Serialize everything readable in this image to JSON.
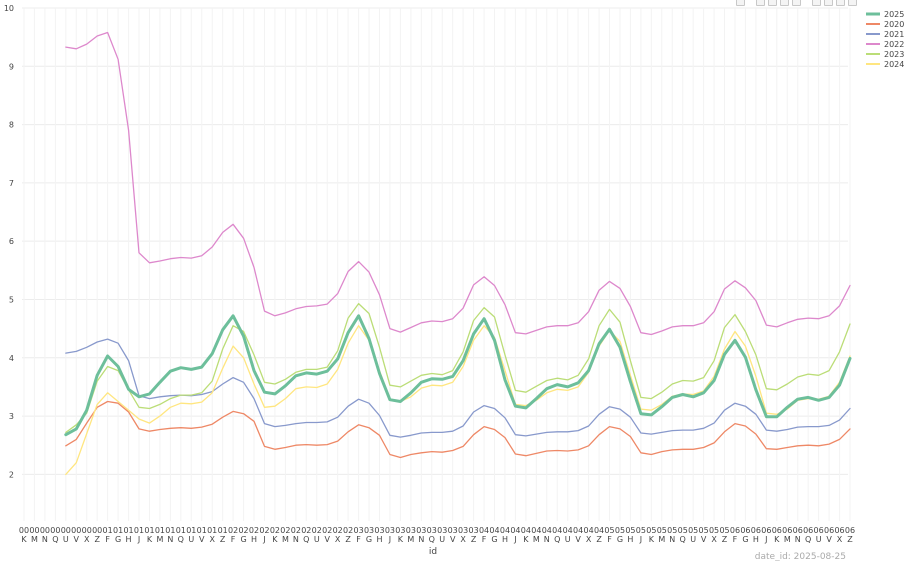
{
  "chart_data": {
    "type": "line",
    "xlabel": "id",
    "ylabel": "",
    "ylim": [
      1.2,
      10
    ],
    "yticks": [
      2,
      3,
      4,
      5,
      6,
      7,
      8,
      9,
      10
    ],
    "x_tick_labels": [
      [
        "00",
        "K"
      ],
      [
        "00",
        "M"
      ],
      [
        "00",
        "N"
      ],
      [
        "00",
        "Q"
      ],
      [
        "00",
        "U"
      ],
      [
        "00",
        "V"
      ],
      [
        "00",
        "X"
      ],
      [
        "00",
        "Z"
      ],
      [
        "01",
        "F"
      ],
      [
        "01",
        "G"
      ],
      [
        "01",
        "H"
      ],
      [
        "01",
        "J"
      ],
      [
        "01",
        "K"
      ],
      [
        "01",
        "M"
      ],
      [
        "01",
        "N"
      ],
      [
        "01",
        "Q"
      ],
      [
        "01",
        "U"
      ],
      [
        "01",
        "V"
      ],
      [
        "01",
        "X"
      ],
      [
        "01",
        "Z"
      ],
      [
        "02",
        "F"
      ],
      [
        "02",
        "G"
      ],
      [
        "02",
        "H"
      ],
      [
        "02",
        "J"
      ],
      [
        "02",
        "K"
      ],
      [
        "02",
        "M"
      ],
      [
        "02",
        "N"
      ],
      [
        "02",
        "Q"
      ],
      [
        "02",
        "U"
      ],
      [
        "02",
        "V"
      ],
      [
        "02",
        "X"
      ],
      [
        "02",
        "Z"
      ],
      [
        "03",
        "F"
      ],
      [
        "03",
        "G"
      ],
      [
        "03",
        "H"
      ],
      [
        "03",
        "J"
      ],
      [
        "03",
        "K"
      ],
      [
        "03",
        "M"
      ],
      [
        "03",
        "N"
      ],
      [
        "03",
        "Q"
      ],
      [
        "03",
        "U"
      ],
      [
        "03",
        "V"
      ],
      [
        "03",
        "X"
      ],
      [
        "03",
        "Z"
      ],
      [
        "04",
        "F"
      ],
      [
        "04",
        "G"
      ],
      [
        "04",
        "H"
      ],
      [
        "04",
        "J"
      ],
      [
        "04",
        "K"
      ],
      [
        "04",
        "M"
      ],
      [
        "04",
        "N"
      ],
      [
        "04",
        "Q"
      ],
      [
        "04",
        "U"
      ],
      [
        "04",
        "V"
      ],
      [
        "04",
        "X"
      ],
      [
        "04",
        "Z"
      ],
      [
        "05",
        "F"
      ],
      [
        "05",
        "G"
      ],
      [
        "05",
        "H"
      ],
      [
        "05",
        "J"
      ],
      [
        "05",
        "K"
      ],
      [
        "05",
        "M"
      ],
      [
        "05",
        "N"
      ],
      [
        "05",
        "Q"
      ],
      [
        "05",
        "U"
      ],
      [
        "05",
        "V"
      ],
      [
        "05",
        "X"
      ],
      [
        "05",
        "Z"
      ],
      [
        "06",
        "F"
      ],
      [
        "06",
        "G"
      ],
      [
        "06",
        "H"
      ],
      [
        "06",
        "J"
      ],
      [
        "06",
        "K"
      ],
      [
        "06",
        "M"
      ],
      [
        "06",
        "N"
      ],
      [
        "06",
        "Q"
      ],
      [
        "06",
        "U"
      ],
      [
        "06",
        "V"
      ],
      [
        "06",
        "X"
      ],
      [
        "06",
        "Z"
      ]
    ],
    "x_start_index": 4,
    "grid": true,
    "legend_position": "top-right",
    "series": [
      {
        "name": "2025",
        "color": "#6dbf9b",
        "width": 3,
        "values": [
          2.68,
          2.78,
          3.1,
          3.7,
          4.03,
          3.85,
          3.46,
          3.33,
          3.38,
          3.58,
          3.77,
          3.83,
          3.8,
          3.84,
          4.07,
          4.48,
          4.72,
          4.37,
          3.78,
          3.41,
          3.38,
          3.52,
          3.69,
          3.74,
          3.72,
          3.77,
          3.98,
          4.43,
          4.72,
          4.33,
          3.73,
          3.28,
          3.25,
          3.4,
          3.58,
          3.64,
          3.63,
          3.68,
          3.95,
          4.41,
          4.67,
          4.3,
          3.62,
          3.17,
          3.14,
          3.3,
          3.47,
          3.54,
          3.5,
          3.57,
          3.78,
          4.24,
          4.49,
          4.18,
          3.59,
          3.04,
          3.02,
          3.16,
          3.32,
          3.37,
          3.33,
          3.4,
          3.61,
          4.06,
          4.3,
          4.01,
          3.45,
          2.99,
          2.99,
          3.15,
          3.29,
          3.32,
          3.27,
          3.32,
          3.53,
          3.99
        ]
      },
      {
        "name": "2020",
        "color": "#ee8866",
        "width": 1.3,
        "values": [
          2.49,
          2.6,
          2.88,
          3.15,
          3.25,
          3.22,
          3.07,
          2.78,
          2.74,
          2.77,
          2.79,
          2.8,
          2.79,
          2.81,
          2.86,
          2.98,
          3.08,
          3.04,
          2.91,
          2.48,
          2.43,
          2.46,
          2.5,
          2.51,
          2.5,
          2.51,
          2.57,
          2.73,
          2.85,
          2.8,
          2.67,
          2.34,
          2.29,
          2.34,
          2.37,
          2.39,
          2.38,
          2.41,
          2.48,
          2.68,
          2.82,
          2.77,
          2.63,
          2.35,
          2.32,
          2.36,
          2.4,
          2.41,
          2.4,
          2.42,
          2.49,
          2.68,
          2.82,
          2.78,
          2.65,
          2.37,
          2.34,
          2.39,
          2.42,
          2.43,
          2.43,
          2.46,
          2.54,
          2.73,
          2.87,
          2.83,
          2.69,
          2.44,
          2.43,
          2.46,
          2.49,
          2.5,
          2.49,
          2.52,
          2.6,
          2.78
        ]
      },
      {
        "name": "2021",
        "color": "#8899cc",
        "width": 1.3,
        "values": [
          4.08,
          4.11,
          4.18,
          4.27,
          4.32,
          4.25,
          3.95,
          3.35,
          3.3,
          3.33,
          3.35,
          3.36,
          3.35,
          3.37,
          3.42,
          3.55,
          3.66,
          3.58,
          3.3,
          2.87,
          2.82,
          2.84,
          2.87,
          2.89,
          2.89,
          2.9,
          2.98,
          3.17,
          3.29,
          3.22,
          3.01,
          2.67,
          2.64,
          2.67,
          2.71,
          2.72,
          2.72,
          2.74,
          2.83,
          3.07,
          3.18,
          3.13,
          2.97,
          2.68,
          2.66,
          2.69,
          2.72,
          2.73,
          2.73,
          2.75,
          2.83,
          3.03,
          3.16,
          3.12,
          2.98,
          2.71,
          2.69,
          2.72,
          2.75,
          2.76,
          2.76,
          2.79,
          2.88,
          3.1,
          3.22,
          3.17,
          3.03,
          2.76,
          2.74,
          2.77,
          2.81,
          2.82,
          2.82,
          2.84,
          2.93,
          3.13
        ]
      },
      {
        "name": "2022",
        "color": "#dd88cc",
        "width": 1.3,
        "values": [
          9.33,
          9.3,
          9.38,
          9.52,
          9.58,
          9.12,
          7.9,
          5.8,
          5.63,
          5.66,
          5.7,
          5.72,
          5.71,
          5.75,
          5.9,
          6.15,
          6.29,
          6.05,
          5.55,
          4.8,
          4.72,
          4.77,
          4.84,
          4.88,
          4.89,
          4.92,
          5.1,
          5.48,
          5.65,
          5.47,
          5.08,
          4.5,
          4.44,
          4.52,
          4.6,
          4.63,
          4.62,
          4.67,
          4.85,
          5.25,
          5.39,
          5.24,
          4.91,
          4.43,
          4.41,
          4.47,
          4.53,
          4.55,
          4.55,
          4.6,
          4.79,
          5.16,
          5.31,
          5.19,
          4.88,
          4.43,
          4.4,
          4.46,
          4.53,
          4.55,
          4.55,
          4.6,
          4.79,
          5.18,
          5.32,
          5.2,
          4.98,
          4.56,
          4.53,
          4.6,
          4.66,
          4.68,
          4.67,
          4.72,
          4.89,
          5.24
        ]
      },
      {
        "name": "2023",
        "color": "#bbdd77",
        "width": 1.3,
        "values": [
          2.72,
          2.85,
          3.05,
          3.6,
          3.85,
          3.78,
          3.45,
          3.15,
          3.13,
          3.2,
          3.3,
          3.36,
          3.36,
          3.4,
          3.6,
          4.15,
          4.55,
          4.45,
          4.05,
          3.58,
          3.55,
          3.63,
          3.75,
          3.8,
          3.8,
          3.84,
          4.12,
          4.68,
          4.93,
          4.76,
          4.18,
          3.53,
          3.5,
          3.6,
          3.7,
          3.73,
          3.71,
          3.78,
          4.1,
          4.64,
          4.86,
          4.7,
          4.05,
          3.44,
          3.41,
          3.51,
          3.61,
          3.65,
          3.62,
          3.7,
          3.98,
          4.55,
          4.83,
          4.61,
          3.95,
          3.32,
          3.3,
          3.41,
          3.55,
          3.61,
          3.6,
          3.66,
          3.95,
          4.52,
          4.74,
          4.45,
          4.05,
          3.47,
          3.45,
          3.55,
          3.67,
          3.72,
          3.7,
          3.78,
          4.1,
          4.58
        ]
      },
      {
        "name": "2024",
        "color": "#ffe680",
        "width": 1.3,
        "values": [
          2.0,
          2.2,
          2.7,
          3.2,
          3.4,
          3.25,
          3.1,
          2.95,
          2.88,
          3.0,
          3.15,
          3.22,
          3.21,
          3.24,
          3.4,
          3.82,
          4.2,
          4.0,
          3.55,
          3.15,
          3.17,
          3.3,
          3.47,
          3.5,
          3.49,
          3.55,
          3.8,
          4.25,
          4.55,
          4.3,
          3.78,
          3.28,
          3.25,
          3.33,
          3.48,
          3.53,
          3.52,
          3.58,
          3.85,
          4.3,
          4.55,
          4.35,
          3.78,
          3.2,
          3.18,
          3.27,
          3.4,
          3.46,
          3.44,
          3.5,
          3.75,
          4.2,
          4.47,
          4.28,
          3.7,
          3.12,
          3.1,
          3.2,
          3.34,
          3.38,
          3.37,
          3.43,
          3.68,
          4.15,
          4.45,
          4.2,
          3.68,
          3.05,
          3.03,
          3.12,
          3.27,
          3.3,
          3.29,
          3.34,
          3.58,
          4.03
        ]
      }
    ]
  },
  "footer": {
    "date_text": "date_id: 2025-08-25"
  }
}
